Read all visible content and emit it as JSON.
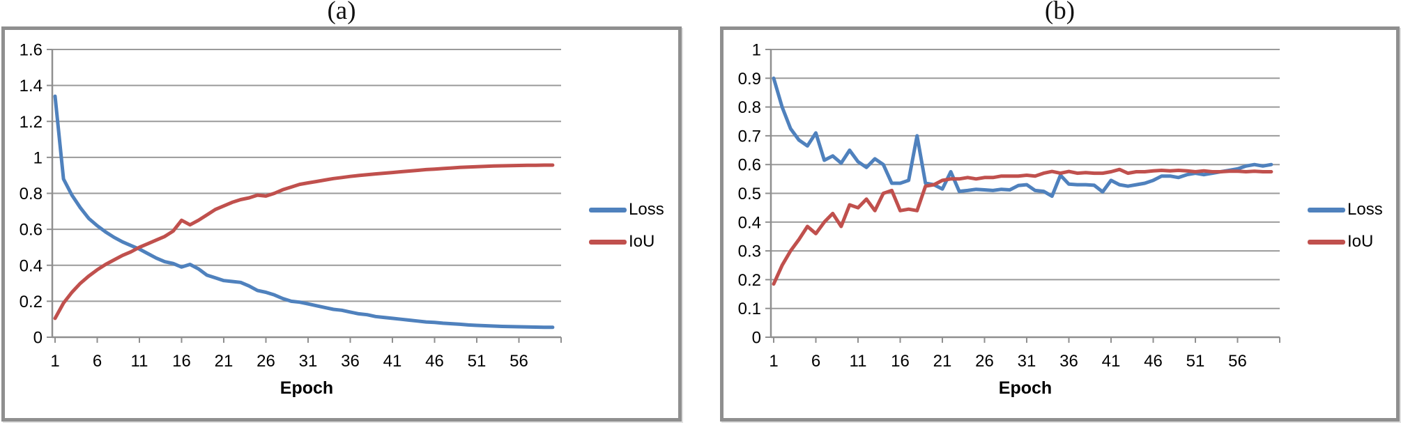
{
  "style": {
    "loss_color": "#4F81BD",
    "iou_color": "#C0504D",
    "grid_color": "#9a9a9a",
    "axis_color": "#8f8f8f",
    "text_color": "#000000",
    "panel_border_color": "#8f8f8f"
  },
  "chart_data": [
    {
      "id": "a",
      "type": "line",
      "title": "(a)",
      "xlabel": "Epoch",
      "grid": true,
      "legend_position": "right",
      "x_ticks": [
        1,
        6,
        11,
        16,
        21,
        26,
        31,
        36,
        41,
        46,
        51,
        56
      ],
      "x": [
        1,
        2,
        3,
        4,
        5,
        6,
        7,
        8,
        9,
        10,
        11,
        12,
        13,
        14,
        15,
        16,
        17,
        18,
        19,
        20,
        21,
        22,
        23,
        24,
        25,
        26,
        27,
        28,
        29,
        30,
        31,
        32,
        33,
        34,
        35,
        36,
        37,
        38,
        39,
        40,
        41,
        42,
        43,
        44,
        45,
        46,
        47,
        48,
        49,
        50,
        51,
        52,
        53,
        54,
        55,
        56,
        57,
        58,
        59,
        60
      ],
      "ylim": [
        0,
        1.6
      ],
      "y_ticks": [
        0,
        0.2,
        0.4,
        0.6,
        0.8,
        1.0,
        1.2,
        1.4,
        1.6
      ],
      "y_tick_labels": [
        "0",
        "0.2",
        "0.4",
        "0.6",
        "0.8",
        "1",
        "1.2",
        "1.4",
        "1.6"
      ],
      "series": [
        {
          "name": "Loss",
          "color": "#4F81BD",
          "values": [
            1.34,
            0.88,
            0.79,
            0.72,
            0.66,
            0.62,
            0.585,
            0.555,
            0.53,
            0.51,
            0.49,
            0.465,
            0.44,
            0.42,
            0.41,
            0.39,
            0.405,
            0.38,
            0.345,
            0.33,
            0.315,
            0.31,
            0.305,
            0.285,
            0.26,
            0.25,
            0.235,
            0.215,
            0.2,
            0.195,
            0.185,
            0.175,
            0.165,
            0.155,
            0.15,
            0.14,
            0.13,
            0.125,
            0.115,
            0.11,
            0.105,
            0.1,
            0.095,
            0.09,
            0.085,
            0.082,
            0.078,
            0.075,
            0.072,
            0.068,
            0.066,
            0.064,
            0.062,
            0.06,
            0.059,
            0.058,
            0.057,
            0.056,
            0.055,
            0.055
          ]
        },
        {
          "name": "IoU",
          "color": "#C0504D",
          "values": [
            0.105,
            0.19,
            0.25,
            0.3,
            0.34,
            0.375,
            0.405,
            0.43,
            0.455,
            0.475,
            0.5,
            0.52,
            0.54,
            0.56,
            0.59,
            0.65,
            0.625,
            0.65,
            0.68,
            0.71,
            0.73,
            0.75,
            0.765,
            0.775,
            0.79,
            0.785,
            0.8,
            0.82,
            0.835,
            0.85,
            0.858,
            0.866,
            0.874,
            0.882,
            0.888,
            0.894,
            0.899,
            0.904,
            0.908,
            0.912,
            0.916,
            0.92,
            0.924,
            0.928,
            0.932,
            0.935,
            0.938,
            0.941,
            0.944,
            0.946,
            0.948,
            0.95,
            0.952,
            0.953,
            0.954,
            0.955,
            0.956,
            0.956,
            0.957,
            0.957
          ]
        }
      ]
    },
    {
      "id": "b",
      "type": "line",
      "title": "(b)",
      "xlabel": "Epoch",
      "grid": true,
      "legend_position": "right",
      "x_ticks": [
        1,
        6,
        11,
        16,
        21,
        26,
        31,
        36,
        41,
        46,
        51,
        56
      ],
      "x": [
        1,
        2,
        3,
        4,
        5,
        6,
        7,
        8,
        9,
        10,
        11,
        12,
        13,
        14,
        15,
        16,
        17,
        18,
        19,
        20,
        21,
        22,
        23,
        24,
        25,
        26,
        27,
        28,
        29,
        30,
        31,
        32,
        33,
        34,
        35,
        36,
        37,
        38,
        39,
        40,
        41,
        42,
        43,
        44,
        45,
        46,
        47,
        48,
        49,
        50,
        51,
        52,
        53,
        54,
        55,
        56,
        57,
        58,
        59,
        60
      ],
      "ylim": [
        0,
        1
      ],
      "y_ticks": [
        0,
        0.1,
        0.2,
        0.3,
        0.4,
        0.5,
        0.6,
        0.7,
        0.8,
        0.9,
        1.0
      ],
      "y_tick_labels": [
        "0",
        "0.1",
        "0.2",
        "0.3",
        "0.4",
        "0.5",
        "0.6",
        "0.7",
        "0.8",
        "0.9",
        "1"
      ],
      "series": [
        {
          "name": "Loss",
          "color": "#4F81BD",
          "values": [
            0.9,
            0.8,
            0.725,
            0.685,
            0.665,
            0.71,
            0.615,
            0.63,
            0.605,
            0.65,
            0.61,
            0.59,
            0.62,
            0.6,
            0.535,
            0.535,
            0.545,
            0.7,
            0.535,
            0.53,
            0.515,
            0.575,
            0.507,
            0.51,
            0.514,
            0.512,
            0.51,
            0.514,
            0.512,
            0.527,
            0.53,
            0.51,
            0.507,
            0.49,
            0.563,
            0.532,
            0.53,
            0.53,
            0.528,
            0.505,
            0.545,
            0.53,
            0.525,
            0.53,
            0.535,
            0.545,
            0.56,
            0.56,
            0.555,
            0.565,
            0.57,
            0.565,
            0.57,
            0.575,
            0.58,
            0.585,
            0.595,
            0.6,
            0.595,
            0.6
          ]
        },
        {
          "name": "IoU",
          "color": "#C0504D",
          "values": [
            0.185,
            0.25,
            0.3,
            0.34,
            0.385,
            0.36,
            0.4,
            0.43,
            0.385,
            0.46,
            0.45,
            0.48,
            0.44,
            0.5,
            0.51,
            0.44,
            0.445,
            0.44,
            0.525,
            0.53,
            0.545,
            0.55,
            0.55,
            0.555,
            0.55,
            0.555,
            0.555,
            0.56,
            0.56,
            0.56,
            0.563,
            0.56,
            0.57,
            0.576,
            0.57,
            0.576,
            0.57,
            0.572,
            0.57,
            0.57,
            0.575,
            0.583,
            0.57,
            0.575,
            0.575,
            0.578,
            0.58,
            0.578,
            0.58,
            0.578,
            0.575,
            0.578,
            0.575,
            0.575,
            0.577,
            0.577,
            0.575,
            0.577,
            0.575,
            0.575
          ]
        }
      ]
    }
  ]
}
